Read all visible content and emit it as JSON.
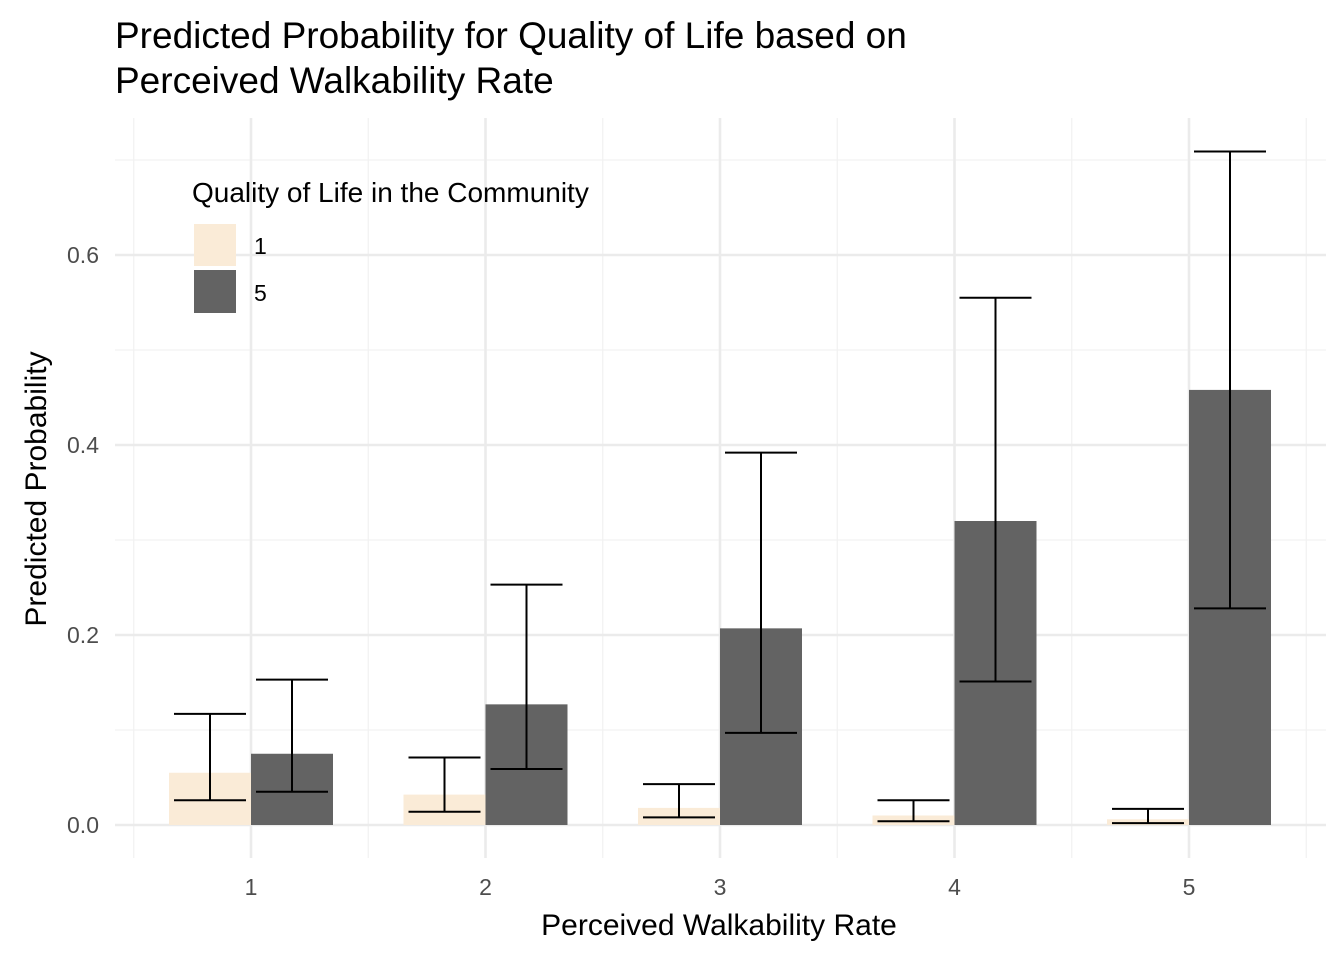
{
  "chart_data": {
    "type": "bar",
    "title_lines": [
      "Predicted Probability for Quality of Life based on",
      "Perceived Walkability Rate"
    ],
    "xlabel": "Perceived Walkability Rate",
    "ylabel": "Predicted Probability",
    "categories": [
      "1",
      "2",
      "3",
      "4",
      "5"
    ],
    "ylim": [
      -0.04,
      0.74
    ],
    "yticks": [
      0.0,
      0.2,
      0.4,
      0.6
    ],
    "ytick_labels": [
      "0.0",
      "0.2",
      "0.4",
      "0.6"
    ],
    "grid": true,
    "legend": {
      "title": "Quality of Life in the Community",
      "position": "top-left"
    },
    "series": [
      {
        "name": "1",
        "color": "#FAEBD7",
        "values": [
          0.055,
          0.032,
          0.018,
          0.01,
          0.006
        ],
        "lower": [
          0.026,
          0.014,
          0.008,
          0.004,
          0.002
        ],
        "upper": [
          0.117,
          0.071,
          0.043,
          0.026,
          0.017
        ]
      },
      {
        "name": "5",
        "color": "#636363",
        "values": [
          0.075,
          0.127,
          0.207,
          0.32,
          0.458
        ],
        "lower": [
          0.035,
          0.059,
          0.097,
          0.151,
          0.228
        ],
        "upper": [
          0.153,
          0.253,
          0.392,
          0.555,
          0.709
        ]
      }
    ]
  }
}
